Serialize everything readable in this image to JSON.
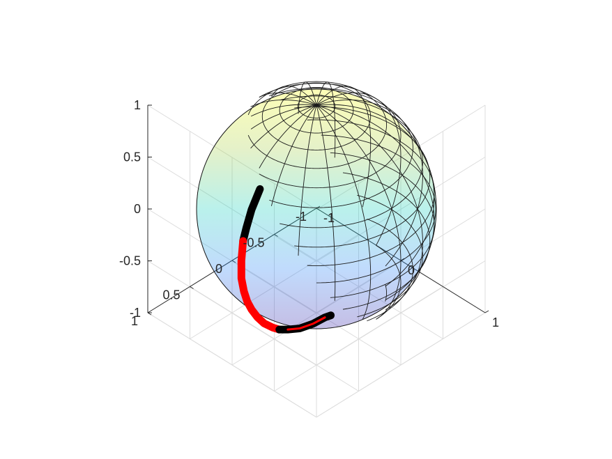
{
  "chart_data": {
    "type": "scatter3d",
    "title": "",
    "xlabel": "",
    "ylabel": "",
    "zlabel": "",
    "grid": true,
    "box": false,
    "xlim": [
      -1,
      1
    ],
    "ylim": [
      -1,
      1
    ],
    "zlim": [
      -1,
      1
    ],
    "x_ticks": [
      "-1",
      "0",
      "1"
    ],
    "y_ticks": [
      "-1",
      "-0.5",
      "0",
      "0.5",
      "1"
    ],
    "z_ticks": [
      "-1",
      "-0.5",
      "0",
      "0.5",
      "1"
    ],
    "view": {
      "azimuth_deg": -45,
      "elevation_deg": 35.26
    },
    "sphere": {
      "type": "surface",
      "radius": 1,
      "center": [
        0,
        0,
        0
      ],
      "colormap": "parula",
      "face_alpha": 0.3,
      "edge_color": "#000000",
      "colormap_stops": [
        "#3e26a8",
        "#2e87f7",
        "#19d0bd",
        "#a8d04a",
        "#f9fb0e"
      ]
    },
    "series": [
      {
        "style": "thick-line",
        "color": "#000000",
        "points": [
          [
            0.1,
            0.77,
            0.63
          ],
          [
            0.1,
            0.87,
            0.48
          ],
          [
            0.1,
            0.93,
            0.34
          ],
          [
            0.1,
            0.97,
            0.23
          ]
        ]
      },
      {
        "style": "thick-line",
        "color": "#ff0000",
        "points": [
          [
            0.1,
            0.97,
            0.23
          ],
          [
            0.1,
            0.99,
            0.05
          ],
          [
            0.1,
            0.99,
            -0.12
          ],
          [
            0.1,
            0.96,
            -0.26
          ],
          [
            0.1,
            0.92,
            -0.38
          ],
          [
            0.1,
            0.87,
            -0.48
          ],
          [
            0.1,
            0.8,
            -0.59
          ],
          [
            0.1,
            0.72,
            -0.69
          ],
          [
            0.1,
            0.62,
            -0.78
          ],
          [
            0.1,
            0.54,
            -0.84
          ]
        ]
      },
      {
        "style": "thick-line",
        "color": "#000000",
        "points": [
          [
            0.1,
            0.54,
            -0.84
          ],
          [
            0.1,
            0.44,
            -0.89
          ],
          [
            0.1,
            0.3,
            -0.95
          ],
          [
            0.1,
            0.14,
            -0.985
          ],
          [
            0.1,
            0.0,
            -0.995
          ],
          [
            0.12,
            -0.05,
            -0.99
          ]
        ]
      },
      {
        "style": "thin-line",
        "color": "#ff0000",
        "points": [
          [
            0.1,
            0.44,
            -0.89
          ],
          [
            0.1,
            0.3,
            -0.95
          ],
          [
            0.1,
            0.14,
            -0.985
          ],
          [
            0.1,
            0.0,
            -0.995
          ]
        ]
      }
    ]
  }
}
